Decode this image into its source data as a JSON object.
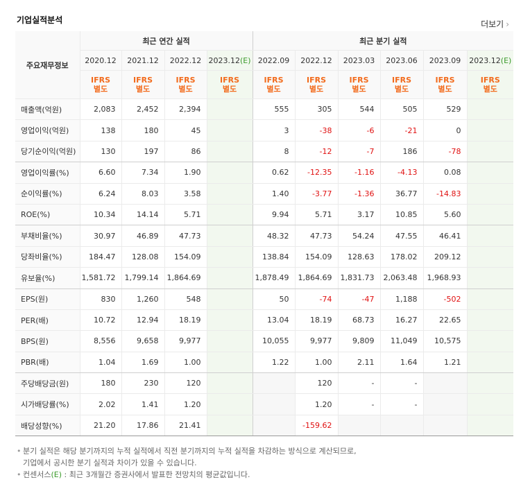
{
  "title": "기업실적분석",
  "more": "더보기",
  "table": {
    "corner": "주요재무정보",
    "groups": [
      "최근 연간 실적",
      "최근 분기 실적"
    ],
    "columns": [
      {
        "date": "2020.12"
      },
      {
        "date": "2021.12"
      },
      {
        "date": "2022.12"
      },
      {
        "date": "2023.12",
        "estimate": "(E)"
      },
      {
        "date": "2022.09"
      },
      {
        "date": "2022.12"
      },
      {
        "date": "2023.03"
      },
      {
        "date": "2023.06"
      },
      {
        "date": "2023.09"
      },
      {
        "date": "2023.12",
        "estimate": "(E)"
      }
    ],
    "standards": [
      "IFRS\n별도",
      "IFRS\n별도",
      "IFRS\n별도",
      "IFRS\n별도",
      "IFRS\n별도",
      "IFRS\n별도",
      "IFRS\n별도",
      "IFRS\n별도",
      "IFRS\n별도",
      "IFRS\n별도"
    ],
    "rows": [
      {
        "label": "매출액(억원)",
        "cells": [
          "2,083",
          "2,452",
          "2,394",
          null,
          "555",
          "305",
          "544",
          "505",
          "529",
          null
        ]
      },
      {
        "label": "영업이익(억원)",
        "cells": [
          "138",
          "180",
          "45",
          null,
          "3",
          "-38",
          "-6",
          "-21",
          "0",
          null
        ]
      },
      {
        "label": "당기순이익(억원)",
        "cells": [
          "130",
          "197",
          "86",
          null,
          "8",
          "-12",
          "-7",
          "186",
          "-78",
          null
        ]
      },
      {
        "label": "영업이익률(%)",
        "cells": [
          "6.60",
          "7.34",
          "1.90",
          null,
          "0.62",
          "-12.35",
          "-1.16",
          "-4.13",
          "0.08",
          null
        ]
      },
      {
        "label": "순이익률(%)",
        "cells": [
          "6.24",
          "8.03",
          "3.58",
          null,
          "1.40",
          "-3.77",
          "-1.36",
          "36.77",
          "-14.83",
          null
        ]
      },
      {
        "label": "ROE(%)",
        "cells": [
          "10.34",
          "14.14",
          "5.71",
          null,
          "9.94",
          "5.71",
          "3.17",
          "10.85",
          "5.60",
          null
        ]
      },
      {
        "label": "부채비율(%)",
        "cells": [
          "30.97",
          "46.89",
          "47.73",
          null,
          "48.32",
          "47.73",
          "54.24",
          "47.55",
          "46.41",
          null
        ]
      },
      {
        "label": "당좌비율(%)",
        "cells": [
          "184.47",
          "128.08",
          "154.09",
          null,
          "138.84",
          "154.09",
          "128.63",
          "178.02",
          "209.12",
          null
        ]
      },
      {
        "label": "유보율(%)",
        "cells": [
          "1,581.72",
          "1,799.14",
          "1,864.69",
          null,
          "1,878.49",
          "1,864.69",
          "1,831.73",
          "2,063.48",
          "1,968.93",
          null
        ]
      },
      {
        "label": "EPS(원)",
        "cells": [
          "830",
          "1,260",
          "548",
          null,
          "50",
          "-74",
          "-47",
          "1,188",
          "-502",
          null
        ]
      },
      {
        "label": "PER(배)",
        "cells": [
          "10.72",
          "12.94",
          "18.19",
          null,
          "13.04",
          "18.19",
          "68.73",
          "16.27",
          "22.65",
          null
        ]
      },
      {
        "label": "BPS(원)",
        "cells": [
          "8,556",
          "9,658",
          "9,977",
          null,
          "10,055",
          "9,977",
          "9,809",
          "11,049",
          "10,575",
          null
        ]
      },
      {
        "label": "PBR(배)",
        "cells": [
          "1.04",
          "1.69",
          "1.00",
          null,
          "1.22",
          "1.00",
          "2.11",
          "1.64",
          "1.21",
          null
        ]
      },
      {
        "label": "주당배당금(원)",
        "cells": [
          "180",
          "230",
          "120",
          null,
          null,
          "120",
          "-",
          "-",
          null,
          null
        ]
      },
      {
        "label": "시가배당률(%)",
        "cells": [
          "2.02",
          "1.41",
          "1.20",
          null,
          null,
          "1.20",
          "-",
          "-",
          null,
          null
        ]
      },
      {
        "label": "배당성향(%)",
        "cells": [
          "21.20",
          "17.86",
          "21.41",
          null,
          null,
          "-159.62",
          null,
          null,
          null,
          null
        ]
      }
    ]
  },
  "notes": [
    [
      "분기 실적은 해당 분기까지의 누적 실적에서 직전 분기까지의 누적 실적을 차감하는 방식으로 계산되므로,",
      "기업에서 공시한 분기 실적과 차이가 있을 수 있습니다."
    ],
    [
      "컨센서스",
      "(E)",
      " : 최근 3개월간 증권사에서 발표한 전망치의 평균값입니다."
    ]
  ]
}
